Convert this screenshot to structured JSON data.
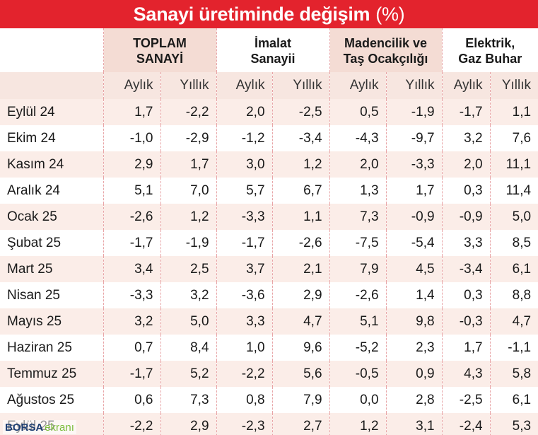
{
  "title": {
    "main": "Sanayi üretiminde değişim",
    "unit": "(%)"
  },
  "groups": [
    {
      "lines": [
        "TOPLAM",
        "SANAYİ"
      ]
    },
    {
      "lines": [
        "İmalat",
        "Sanayii"
      ]
    },
    {
      "lines": [
        "Madencilik ve",
        "Taş Ocakçılığı"
      ]
    },
    {
      "lines": [
        "Elektrik,",
        "Gaz Buhar"
      ]
    }
  ],
  "subheaders": {
    "monthly": "Aylık",
    "yearly": "Yıllık"
  },
  "rows": [
    {
      "label": "Eylül 24",
      "values": [
        "1,7",
        "-2,2",
        "2,0",
        "-2,5",
        "0,5",
        "-1,9",
        "-1,7",
        "1,1"
      ]
    },
    {
      "label": "Ekim 24",
      "values": [
        "-1,0",
        "-2,9",
        "-1,2",
        "-3,4",
        "-4,3",
        "-9,7",
        "3,2",
        "7,6"
      ]
    },
    {
      "label": "Kasım 24",
      "values": [
        "2,9",
        "1,7",
        "3,0",
        "1,2",
        "2,0",
        "-3,3",
        "2,0",
        "11,1"
      ]
    },
    {
      "label": "Aralık 24",
      "values": [
        "5,1",
        "7,0",
        "5,7",
        "6,7",
        "1,3",
        "1,7",
        "0,3",
        "11,4"
      ]
    },
    {
      "label": "Ocak 25",
      "values": [
        "-2,6",
        "1,2",
        "-3,3",
        "1,1",
        "7,3",
        "-0,9",
        "-0,9",
        "5,0"
      ]
    },
    {
      "label": "Şubat 25",
      "values": [
        "-1,7",
        "-1,9",
        "-1,7",
        "-2,6",
        "-7,5",
        "-5,4",
        "3,3",
        "8,5"
      ]
    },
    {
      "label": "Mart 25",
      "values": [
        "3,4",
        "2,5",
        "3,7",
        "2,1",
        "7,9",
        "4,5",
        "-3,4",
        "6,1"
      ]
    },
    {
      "label": "Nisan 25",
      "values": [
        "-3,3",
        "3,2",
        "-3,6",
        "2,9",
        "-2,6",
        "1,4",
        "0,3",
        "8,8"
      ]
    },
    {
      "label": "Mayıs 25",
      "values": [
        "3,2",
        "5,0",
        "3,3",
        "4,7",
        "5,1",
        "9,8",
        "-0,3",
        "4,7"
      ]
    },
    {
      "label": "Haziran 25",
      "values": [
        "0,7",
        "8,4",
        "1,0",
        "9,6",
        "-5,2",
        "2,3",
        "1,7",
        "-1,1"
      ]
    },
    {
      "label": "Temmuz 25",
      "values": [
        "-1,7",
        "5,2",
        "-2,2",
        "5,6",
        "-0,5",
        "0,9",
        "4,3",
        "5,8"
      ]
    },
    {
      "label": "Ağustos 25",
      "values": [
        "0,6",
        "7,3",
        "0,8",
        "7,9",
        "0,0",
        "2,8",
        "-2,5",
        "6,1"
      ]
    },
    {
      "label": "Eylül 25",
      "values": [
        "-2,2",
        "2,9",
        "-2,3",
        "2,7",
        "1,2",
        "3,1",
        "-2,4",
        "5,3"
      ]
    }
  ],
  "watermark": {
    "brand": "BORSA",
    "suffix": "ekranı"
  },
  "colors": {
    "title_bg": "#e3232d",
    "band": "#f4dcd4",
    "divider": "#e8a5a7",
    "watermark_brand": "#1e3f73",
    "watermark_suffix": "#7abd3c"
  }
}
